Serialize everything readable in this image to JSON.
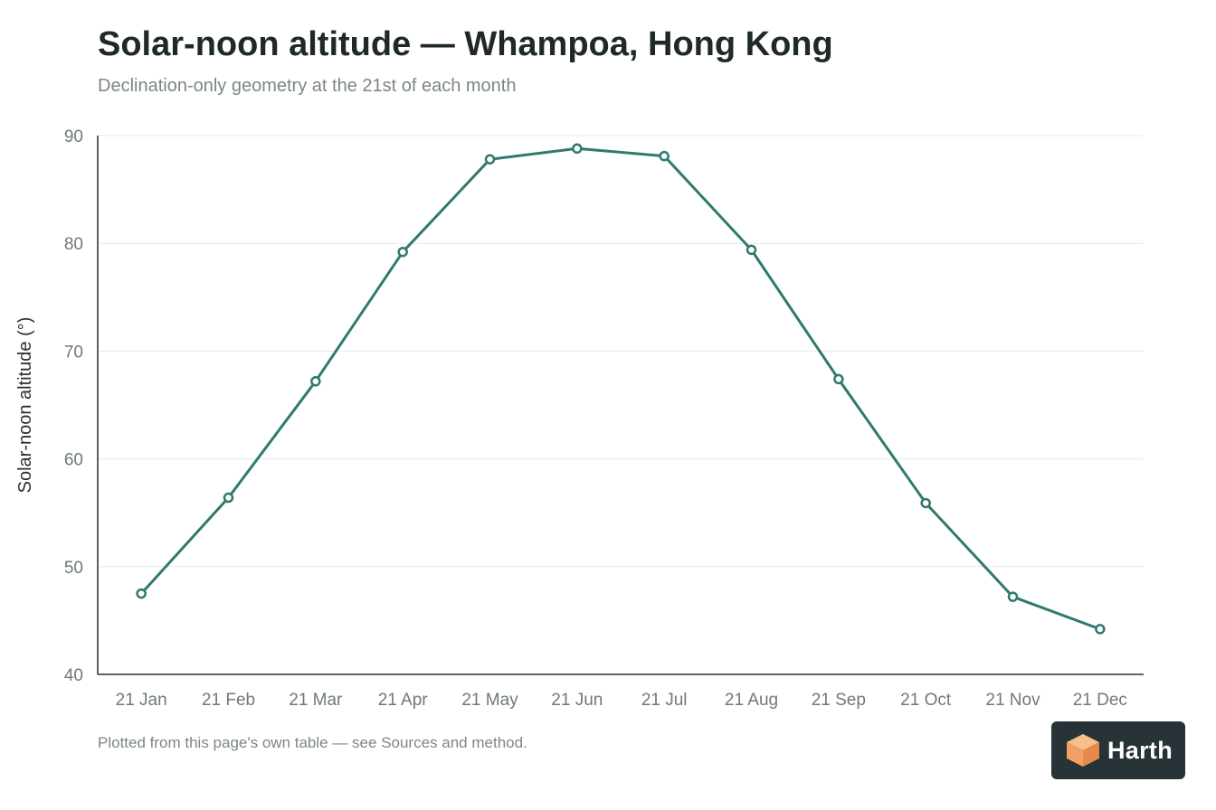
{
  "colors": {
    "line": "#2f7a6f",
    "grid": "#e6e9e8",
    "axis": "#2a2f2e",
    "tick_text": "#6f7a77",
    "marker_fill": "#ffffff",
    "badge_bg": "#283338",
    "logo_orange": "#f2a064"
  },
  "footer": {
    "note": "Plotted from this page's own table — see Sources and method."
  },
  "badge": {
    "text": "Harth",
    "icon": "cube-logo-icon"
  },
  "chart_data": {
    "type": "line",
    "title": "Solar-noon altitude — Whampoa, Hong Kong",
    "subtitle": "Declination-only geometry at the 21st of each month",
    "xlabel": "",
    "ylabel": "Solar-noon altitude (°)",
    "ylim": [
      40,
      90
    ],
    "yticks": [
      40,
      50,
      60,
      70,
      80,
      90
    ],
    "grid": true,
    "categories": [
      "21 Jan",
      "21 Feb",
      "21 Mar",
      "21 Apr",
      "21 May",
      "21 Jun",
      "21 Jul",
      "21 Aug",
      "21 Sep",
      "21 Oct",
      "21 Nov",
      "21 Dec"
    ],
    "values": [
      47.5,
      56.4,
      67.2,
      79.2,
      87.8,
      88.8,
      88.1,
      79.4,
      67.4,
      55.9,
      47.2,
      44.2
    ]
  }
}
